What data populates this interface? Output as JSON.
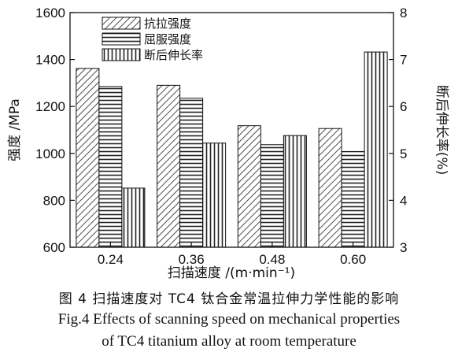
{
  "chart_data": {
    "type": "bar",
    "categories": [
      "0.24",
      "0.36",
      "0.48",
      "0.60"
    ],
    "xlabel": "扫描速度 /(m·min⁻¹)",
    "ylabel_left": "强度 /MPa",
    "ylabel_right": "断后伸长率(%)",
    "ylim_left": [
      600,
      1600
    ],
    "ylim_right": [
      3,
      8
    ],
    "yticks_left": [
      "600",
      "800",
      "1000",
      "1200",
      "1400",
      "1600"
    ],
    "yticks_right": [
      "3",
      "4",
      "5",
      "6",
      "7",
      "8"
    ],
    "legend_position": "top-left",
    "grid": false,
    "series": [
      {
        "name": "抗拉强度",
        "axis": "left",
        "pattern": "diagonal",
        "values": [
          1362,
          1290,
          1118,
          1106
        ]
      },
      {
        "name": "屈服强度",
        "axis": "left",
        "pattern": "horizontal",
        "values": [
          1285,
          1235,
          1037,
          1008
        ]
      },
      {
        "name": "断后伸长率",
        "axis": "right",
        "pattern": "vertical",
        "values": [
          4.26,
          5.22,
          5.38,
          7.16
        ]
      }
    ]
  },
  "caption": {
    "chinese": "图 4  扫描速度对 TC4 钛合金常温拉伸力学性能的影响",
    "english_line1": "Fig.4  Effects of scanning speed on mechanical properties",
    "english_line2": "of TC4 titanium alloy at room temperature"
  }
}
